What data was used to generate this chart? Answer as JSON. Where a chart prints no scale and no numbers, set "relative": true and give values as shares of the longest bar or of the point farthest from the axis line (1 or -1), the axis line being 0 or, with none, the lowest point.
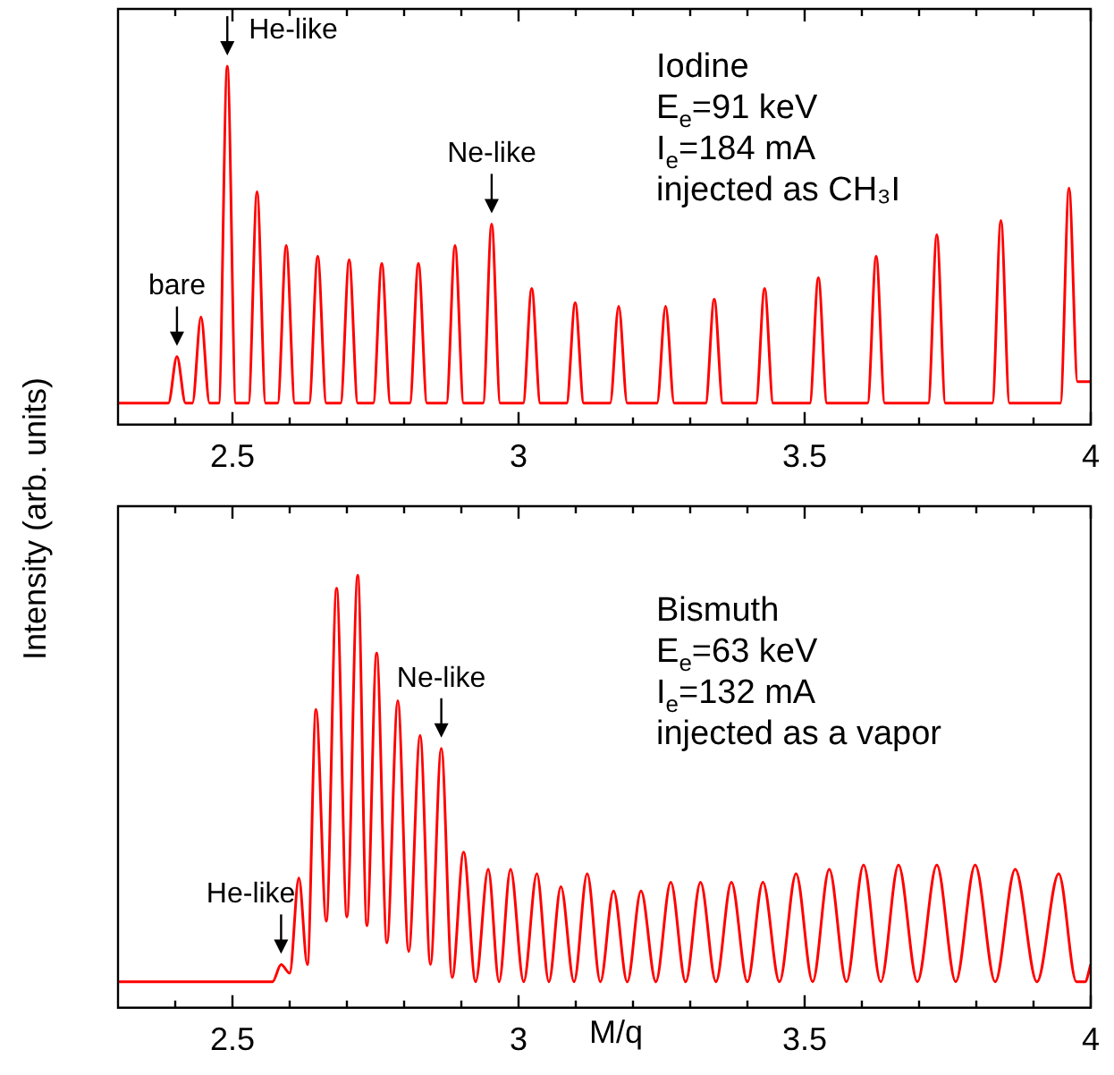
{
  "chart_data": [
    {
      "type": "line",
      "relative": true,
      "ylabel": "Intensity (arb. units)",
      "tick_labels": "x",
      "xlim": [
        2.3,
        4.0
      ],
      "xticks": [
        {
          "value": 2.4,
          "label": null
        },
        2.5,
        {
          "value": 2.6,
          "label": null
        },
        {
          "value": 2.7,
          "label": null
        },
        {
          "value": 2.8,
          "label": null
        },
        {
          "value": 2.9,
          "label": null
        },
        3,
        {
          "value": 3.1,
          "label": null
        },
        {
          "value": 3.2,
          "label": null
        },
        {
          "value": 3.3,
          "label": null
        },
        {
          "value": 3.4,
          "label": null
        },
        3.5,
        {
          "value": 3.6,
          "label": null
        },
        {
          "value": 3.7,
          "label": null
        },
        {
          "value": 3.8,
          "label": null
        },
        {
          "value": 3.9,
          "label": null
        },
        4
      ],
      "x": [
        2.3,
        2.388,
        2.403,
        2.418,
        2.43,
        2.445,
        2.46,
        2.476,
        2.491,
        2.506,
        2.528,
        2.543,
        2.558,
        2.579,
        2.594,
        2.609,
        2.634,
        2.649,
        2.664,
        2.689,
        2.704,
        2.719,
        2.746,
        2.761,
        2.776,
        2.81,
        2.825,
        2.84,
        2.874,
        2.889,
        2.904,
        2.938,
        2.953,
        2.968,
        3.008,
        3.023,
        3.038,
        3.084,
        3.099,
        3.114,
        3.16,
        3.175,
        3.19,
        3.242,
        3.257,
        3.272,
        3.327,
        3.342,
        3.357,
        3.415,
        3.43,
        3.445,
        3.509,
        3.524,
        3.539,
        3.61,
        3.625,
        3.64,
        3.716,
        3.731,
        3.746,
        3.828,
        3.843,
        3.858,
        3.947,
        3.962,
        3.977,
        4.0
      ],
      "series": [
        {
          "color": "#ff0000",
          "values": [
            0.06,
            0.06,
            0.19,
            0.06,
            0.06,
            0.3,
            0.06,
            0.06,
            1.0,
            0.06,
            0.06,
            0.65,
            0.06,
            0.06,
            0.5,
            0.06,
            0.06,
            0.47,
            0.06,
            0.06,
            0.46,
            0.06,
            0.06,
            0.45,
            0.06,
            0.06,
            0.45,
            0.06,
            0.06,
            0.5,
            0.06,
            0.06,
            0.56,
            0.06,
            0.06,
            0.38,
            0.06,
            0.06,
            0.34,
            0.06,
            0.06,
            0.33,
            0.06,
            0.06,
            0.33,
            0.06,
            0.06,
            0.35,
            0.06,
            0.06,
            0.38,
            0.06,
            0.06,
            0.41,
            0.06,
            0.06,
            0.47,
            0.06,
            0.06,
            0.53,
            0.06,
            0.06,
            0.57,
            0.06,
            0.06,
            0.66,
            0.12,
            0.12
          ]
        }
      ],
      "annotations": [
        "Iodine",
        "E$_{e}$=91 keV",
        "I$_{e}$=184 mA",
        "injected as CH₃I",
        {
          "text": "He-like",
          "x": 2.491,
          "y": 1.0
        },
        {
          "text": "bare",
          "x": 2.403,
          "y": 0.19
        },
        {
          "text": "Ne-like",
          "x": 2.953,
          "y": 0.56
        }
      ]
    },
    {
      "type": "line",
      "relative": true,
      "xlabel": "M/q",
      "tick_labels": "x",
      "xlim": [
        2.3,
        4.0
      ],
      "xticks": [
        {
          "value": 2.4,
          "label": null
        },
        2.5,
        {
          "value": 2.6,
          "label": null
        },
        {
          "value": 2.7,
          "label": null
        },
        {
          "value": 2.8,
          "label": null
        },
        {
          "value": 2.9,
          "label": null
        },
        3,
        {
          "value": 3.1,
          "label": null
        },
        {
          "value": 3.2,
          "label": null
        },
        {
          "value": 3.3,
          "label": null
        },
        {
          "value": 3.4,
          "label": null
        },
        3.5,
        {
          "value": 3.6,
          "label": null
        },
        {
          "value": 3.7,
          "label": null
        },
        {
          "value": 3.8,
          "label": null
        },
        {
          "value": 3.9,
          "label": null
        },
        4
      ],
      "x": [
        2.3,
        2.57,
        2.585,
        2.6,
        2.616,
        2.631,
        2.646,
        2.664,
        2.682,
        2.7,
        2.719,
        2.735,
        2.752,
        2.77,
        2.789,
        2.808,
        2.828,
        2.846,
        2.865,
        2.884,
        2.904,
        2.925,
        2.947,
        2.966,
        2.986,
        3.009,
        3.032,
        3.053,
        3.074,
        3.097,
        3.12,
        3.143,
        3.166,
        3.19,
        3.214,
        3.24,
        3.266,
        3.292,
        3.318,
        3.345,
        3.372,
        3.4,
        3.427,
        3.456,
        3.485,
        3.514,
        3.543,
        3.573,
        3.603,
        3.633,
        3.664,
        3.697,
        3.731,
        3.764,
        3.798,
        3.833,
        3.868,
        3.906,
        3.944,
        3.975,
        3.99,
        4.0
      ],
      "series": [
        {
          "color": "#ff0000",
          "values": [
            0.06,
            0.06,
            0.1,
            0.08,
            0.3,
            0.1,
            0.69,
            0.2,
            0.97,
            0.21,
            1.0,
            0.19,
            0.82,
            0.15,
            0.71,
            0.13,
            0.63,
            0.1,
            0.6,
            0.07,
            0.36,
            0.06,
            0.32,
            0.06,
            0.32,
            0.06,
            0.31,
            0.06,
            0.28,
            0.06,
            0.31,
            0.06,
            0.27,
            0.06,
            0.27,
            0.06,
            0.29,
            0.06,
            0.29,
            0.06,
            0.29,
            0.06,
            0.29,
            0.06,
            0.31,
            0.06,
            0.32,
            0.06,
            0.33,
            0.06,
            0.33,
            0.06,
            0.33,
            0.06,
            0.33,
            0.06,
            0.32,
            0.06,
            0.31,
            0.06,
            0.06,
            0.1
          ]
        }
      ],
      "annotations": [
        "Bismuth",
        "E$_{e}$=63 keV",
        "I$_{e}$=132 mA",
        "injected as a vapor",
        {
          "text": "He-like",
          "x": 2.585,
          "y": 0.1
        },
        {
          "text": "Ne-like",
          "x": 2.865,
          "y": 0.6
        }
      ]
    }
  ]
}
